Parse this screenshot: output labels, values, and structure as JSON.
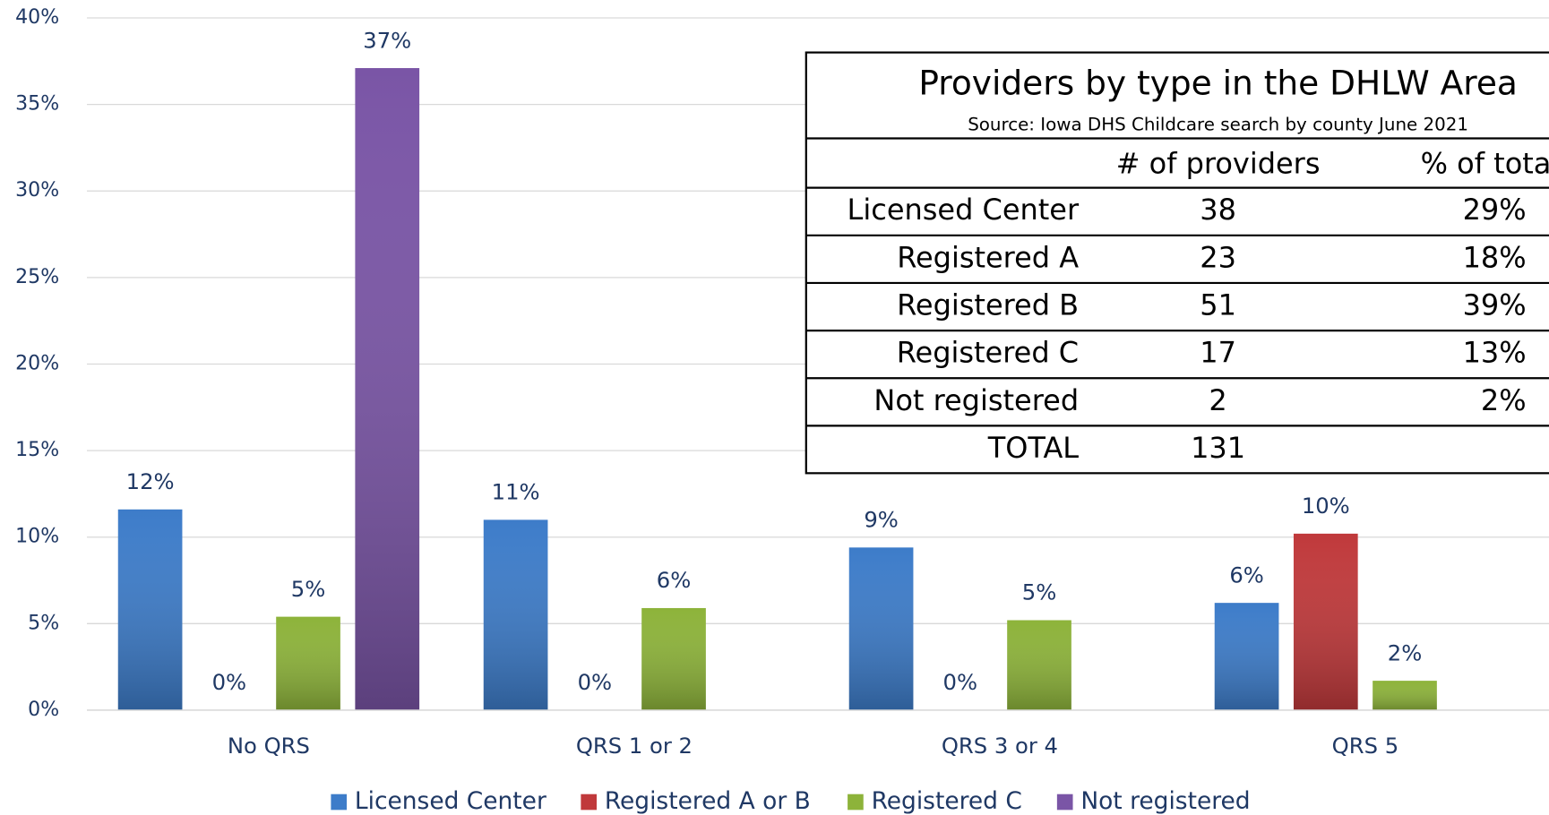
{
  "chart_data": {
    "type": "bar",
    "categories": [
      "No QRS",
      "QRS 1 or 2",
      "QRS 3 or 4",
      "QRS 5"
    ],
    "series": [
      {
        "name": "Licensed Center",
        "color": "#3d7cc9",
        "values": [
          11.6,
          11.0,
          9.4,
          6.2
        ],
        "value_labels": [
          "12%",
          "11%",
          "9%",
          "6%"
        ]
      },
      {
        "name": "Registered A or B",
        "color": "#c0393b",
        "values": [
          0,
          0,
          0,
          10.2
        ],
        "value_labels": [
          "0%",
          "0%",
          "0%",
          "10%"
        ]
      },
      {
        "name": "Registered C",
        "color": "#8db33a",
        "values": [
          5.4,
          5.9,
          5.2,
          1.7
        ],
        "value_labels": [
          "5%",
          "6%",
          "5%",
          "2%"
        ]
      },
      {
        "name": "Not registered",
        "color": "#7a55a6",
        "values": [
          37.1,
          null,
          null,
          null
        ],
        "value_labels": [
          "37%",
          null,
          null,
          null
        ]
      }
    ],
    "ylim": [
      0,
      40
    ],
    "yticks": [
      {
        "value": 0,
        "label": "0%"
      },
      {
        "value": 5,
        "label": "5%"
      },
      {
        "value": 10,
        "label": "10%"
      },
      {
        "value": 15,
        "label": "15%"
      },
      {
        "value": 20,
        "label": "20%"
      },
      {
        "value": 25,
        "label": "25%"
      },
      {
        "value": 30,
        "label": "30%"
      },
      {
        "value": 35,
        "label": "35%"
      },
      {
        "value": 40,
        "label": "40%"
      }
    ],
    "grid": true,
    "legend": "bottom"
  },
  "table": {
    "title": "Providers by type in the DHLW Area",
    "subtitle": "Source: Iowa DHS Childcare search by county June 2021",
    "header": [
      "# of providers",
      "% of total"
    ],
    "rows": [
      [
        "Licensed Center",
        38,
        "29%"
      ],
      [
        "Registered A",
        23,
        "18%"
      ],
      [
        "Registered B",
        51,
        "39%"
      ],
      [
        "Registered C",
        17,
        "13%"
      ],
      [
        "Not registered",
        2,
        "2%"
      ],
      [
        "TOTAL",
        131
      ]
    ]
  }
}
